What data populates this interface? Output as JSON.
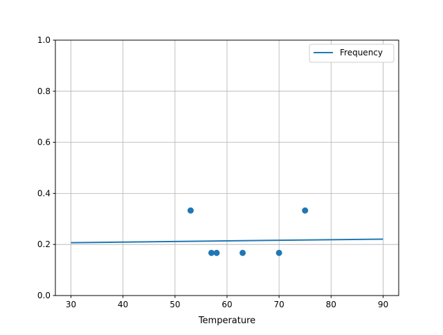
{
  "chart_data": {
    "type": "scatter",
    "title": "",
    "xlabel": "Temperature",
    "ylabel": "",
    "xlim": [
      27,
      93
    ],
    "ylim": [
      0,
      1
    ],
    "xticks": [
      30,
      40,
      50,
      60,
      70,
      80,
      90
    ],
    "yticks": [
      "0.0",
      "0.2",
      "0.4",
      "0.6",
      "0.8",
      "1.0"
    ],
    "grid": true,
    "legend": {
      "placement": "top-right",
      "entries": [
        "Frequency"
      ]
    },
    "color": "#1f77b4",
    "points": {
      "x": [
        53,
        57,
        58,
        63,
        70,
        75
      ],
      "y": [
        0.333,
        0.167,
        0.167,
        0.167,
        0.167,
        0.333
      ]
    },
    "series": [
      {
        "name": "Frequency",
        "type": "line",
        "x": [
          30,
          90
        ],
        "y": [
          0.207,
          0.221
        ]
      }
    ]
  }
}
